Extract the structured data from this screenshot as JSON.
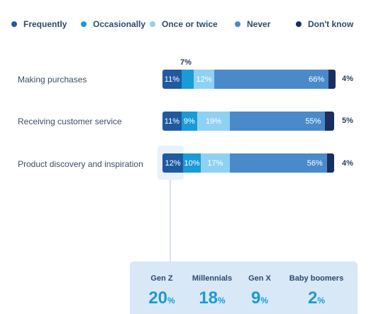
{
  "colors": {
    "frequently": "#1f5aa0",
    "occasionally": "#1a9ad6",
    "once_or_twice": "#8fd1f2",
    "never": "#4a8acb",
    "dont_know": "#1b2f5c"
  },
  "chart_data": {
    "type": "bar",
    "orientation": "horizontal",
    "stacked": true,
    "categories": [
      "Making purchases",
      "Receiving customer service",
      "Product discovery and inspiration"
    ],
    "series": [
      {
        "name": "Frequently",
        "values": [
          11,
          11,
          12
        ]
      },
      {
        "name": "Occasionally",
        "values": [
          7,
          9,
          10
        ]
      },
      {
        "name": "Once or twice",
        "values": [
          12,
          19,
          17
        ]
      },
      {
        "name": "Never",
        "values": [
          66,
          55,
          56
        ]
      },
      {
        "name": "Don't know",
        "values": [
          4,
          5,
          4
        ]
      }
    ],
    "legend_position": "top"
  },
  "rows": [
    {
      "label": "Making purchases",
      "frequently": "11%",
      "occasionally": "7%",
      "once": "12%",
      "never": "66%",
      "dont_know": "4%"
    },
    {
      "label": "Receiving customer service",
      "frequently": "11%",
      "occasionally": "9%",
      "once": "19%",
      "never": "55%",
      "dont_know": "5%"
    },
    {
      "label": "Product discovery and inspiration",
      "frequently": "12%",
      "occasionally": "10%",
      "once": "17%",
      "never": "56%",
      "dont_know": "4%"
    }
  ],
  "generations": [
    {
      "label": "Gen Z",
      "value": "20",
      "unit": "%"
    },
    {
      "label": "Millennials",
      "value": "18",
      "unit": "%"
    },
    {
      "label": "Gen X",
      "value": "9",
      "unit": "%"
    },
    {
      "label": "Baby boomers",
      "value": "2",
      "unit": "%"
    }
  ]
}
